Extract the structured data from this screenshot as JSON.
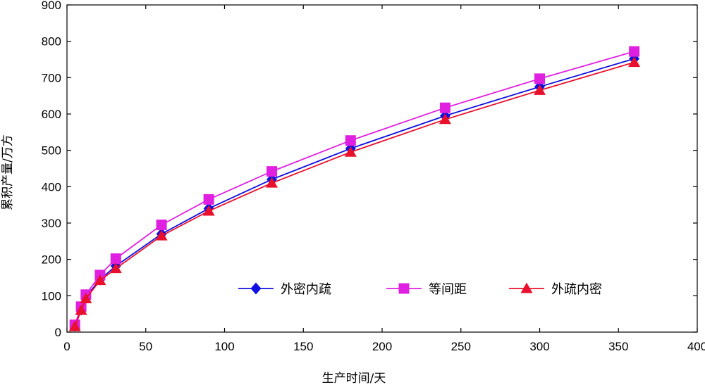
{
  "chart_data": {
    "type": "line",
    "xlabel": "生产时间/天",
    "ylabel": "累积产量/万方",
    "xlim": [
      0,
      400
    ],
    "ylim": [
      0,
      900
    ],
    "xticks": [
      0,
      50,
      100,
      150,
      200,
      250,
      300,
      350,
      400
    ],
    "yticks": [
      0,
      100,
      200,
      300,
      400,
      500,
      600,
      700,
      800,
      900
    ],
    "grid": false,
    "legend_position": "bottom-right",
    "series": [
      {
        "name": "外密内疏",
        "color": "#1010e0",
        "marker": "diamond",
        "x": [
          5,
          9,
          12,
          21,
          31,
          60,
          90,
          130,
          180,
          240,
          300,
          360
        ],
        "y": [
          18,
          62,
          97,
          145,
          182,
          270,
          340,
          420,
          505,
          595,
          675,
          752
        ]
      },
      {
        "name": "等间距",
        "color": "#e020e0",
        "marker": "square",
        "x": [
          5,
          9,
          12,
          21,
          31,
          60,
          90,
          130,
          180,
          240,
          300,
          360
        ],
        "y": [
          20,
          70,
          103,
          157,
          202,
          295,
          365,
          442,
          527,
          617,
          697,
          772
        ]
      },
      {
        "name": "外疏内密",
        "color": "#e8102c",
        "marker": "triangle",
        "x": [
          5,
          9,
          12,
          21,
          31,
          60,
          90,
          130,
          180,
          240,
          300,
          360
        ],
        "y": [
          15,
          60,
          92,
          142,
          175,
          265,
          333,
          410,
          495,
          585,
          665,
          742
        ]
      }
    ]
  }
}
